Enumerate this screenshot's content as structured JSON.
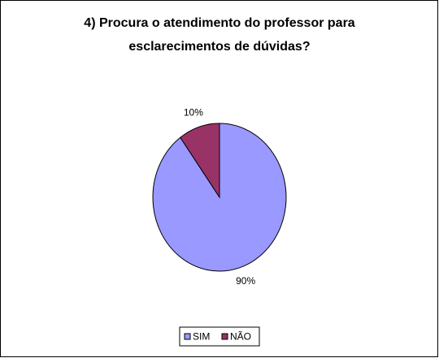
{
  "chart_data": {
    "type": "pie",
    "title": [
      "4) Procura o atendimento do professor para",
      "esclarecimentos de dúvidas?"
    ],
    "categories": [
      "SIM",
      "NÃO"
    ],
    "values": [
      90,
      10
    ],
    "value_labels": [
      "90%",
      "10%"
    ],
    "colors": [
      "#9999ff",
      "#993366"
    ],
    "legend": "bottom"
  }
}
